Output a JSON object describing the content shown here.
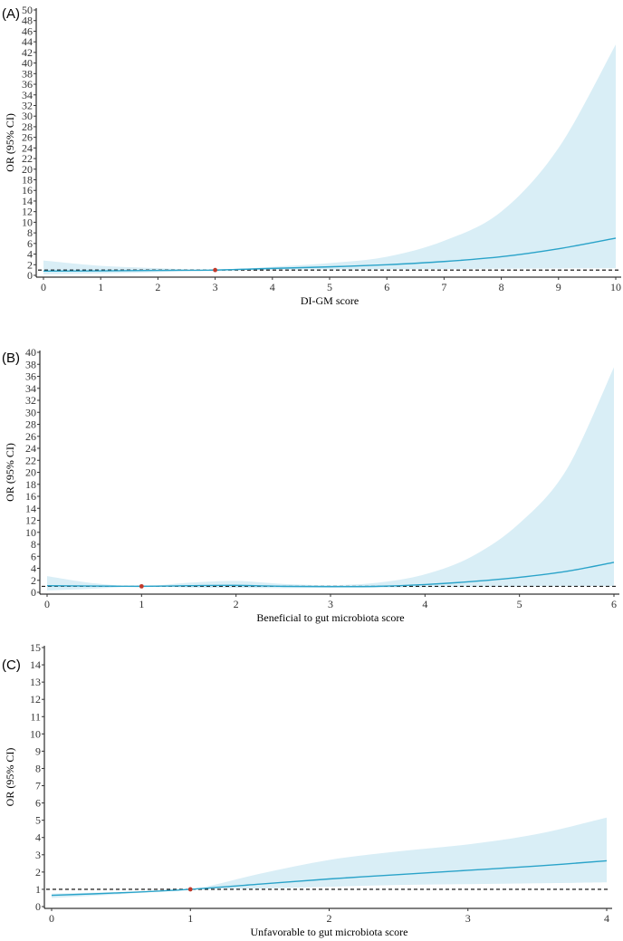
{
  "chart_data": [
    {
      "panel": "(A)",
      "type": "area",
      "title": "",
      "xlabel": "DI-GM score",
      "ylabel": "OR (95% CI)",
      "xlim": [
        0,
        10
      ],
      "ylim": [
        0,
        50
      ],
      "xticks": [
        0,
        1,
        2,
        3,
        4,
        5,
        6,
        7,
        8,
        9,
        10
      ],
      "yticks": [
        0,
        2,
        4,
        6,
        8,
        10,
        12,
        14,
        16,
        18,
        20,
        22,
        24,
        26,
        28,
        30,
        32,
        34,
        36,
        38,
        40,
        42,
        44,
        46,
        48,
        50
      ],
      "reference_line": 1,
      "reference_point": {
        "x": 3,
        "y": 1
      },
      "series": [
        {
          "name": "OR",
          "x": [
            0,
            1,
            2,
            3,
            4,
            5,
            6,
            7,
            8,
            9,
            10
          ],
          "values": [
            0.8,
            0.85,
            0.93,
            1.0,
            1.3,
            1.6,
            2.0,
            2.6,
            3.5,
            5.0,
            7.0
          ]
        },
        {
          "name": "95% CI upper",
          "x": [
            0,
            1,
            2,
            3,
            4,
            5,
            6,
            7,
            8,
            9,
            10
          ],
          "values": [
            2.8,
            1.8,
            1.35,
            1.0,
            1.6,
            2.3,
            3.5,
            6.5,
            12.0,
            24.0,
            43.5
          ]
        },
        {
          "name": "95% CI lower",
          "x": [
            0,
            1,
            2,
            3,
            4,
            5,
            6,
            7,
            8,
            9,
            10
          ],
          "values": [
            0.2,
            0.35,
            0.6,
            1.0,
            1.05,
            1.1,
            1.15,
            1.2,
            1.25,
            1.3,
            1.35
          ]
        }
      ]
    },
    {
      "panel": "(B)",
      "type": "area",
      "title": "",
      "xlabel": "Beneficial to gut microbiota score",
      "ylabel": "OR (95% CI)",
      "xlim": [
        0,
        6
      ],
      "ylim": [
        0,
        40
      ],
      "xticks": [
        0,
        1,
        2,
        3,
        4,
        5,
        6
      ],
      "yticks": [
        0,
        2,
        4,
        6,
        8,
        10,
        12,
        14,
        16,
        18,
        20,
        22,
        24,
        26,
        28,
        30,
        32,
        34,
        36,
        38,
        40
      ],
      "reference_line": 1,
      "reference_point": {
        "x": 1,
        "y": 1
      },
      "series": [
        {
          "name": "OR",
          "x": [
            0,
            0.5,
            1,
            1.5,
            2,
            2.5,
            3,
            3.5,
            4,
            4.5,
            5,
            5.5,
            6
          ],
          "values": [
            1.1,
            1.05,
            1.0,
            1.1,
            1.15,
            1.0,
            0.95,
            1.0,
            1.3,
            1.8,
            2.5,
            3.5,
            5.0
          ]
        },
        {
          "name": "95% CI upper",
          "x": [
            0,
            0.5,
            1,
            1.5,
            2,
            2.5,
            3,
            3.5,
            4,
            4.5,
            5,
            5.5,
            6
          ],
          "values": [
            2.7,
            1.5,
            1.0,
            1.6,
            1.9,
            1.4,
            1.2,
            1.6,
            3.0,
            6.0,
            11.5,
            20.5,
            37.5
          ]
        },
        {
          "name": "95% CI lower",
          "x": [
            0,
            0.5,
            1,
            1.5,
            2,
            2.5,
            3,
            3.5,
            4,
            4.5,
            5,
            5.5,
            6
          ],
          "values": [
            0.3,
            0.6,
            1.0,
            0.8,
            0.75,
            0.7,
            0.75,
            0.8,
            0.85,
            0.9,
            0.95,
            1.0,
            1.05
          ]
        }
      ]
    },
    {
      "panel": "(C)",
      "type": "area",
      "title": "",
      "xlabel": "Unfavorable to gut microbiota score",
      "ylabel": "OR (95% CI)",
      "xlim": [
        0,
        4
      ],
      "ylim": [
        0,
        15
      ],
      "xticks": [
        0,
        1,
        2,
        3,
        4
      ],
      "yticks": [
        0,
        1,
        2,
        3,
        4,
        5,
        6,
        7,
        8,
        9,
        10,
        11,
        12,
        13,
        14,
        15
      ],
      "reference_line": 1,
      "reference_point": {
        "x": 1,
        "y": 1
      },
      "series": [
        {
          "name": "OR",
          "x": [
            0,
            0.5,
            1,
            1.5,
            2,
            2.5,
            3,
            3.5,
            4
          ],
          "values": [
            0.65,
            0.8,
            1.0,
            1.3,
            1.6,
            1.85,
            2.1,
            2.35,
            2.65
          ]
        },
        {
          "name": "95% CI upper",
          "x": [
            0,
            0.5,
            1,
            1.5,
            2,
            2.5,
            3,
            3.5,
            4
          ],
          "values": [
            0.75,
            0.85,
            1.0,
            1.9,
            2.7,
            3.2,
            3.6,
            4.2,
            5.15
          ]
        },
        {
          "name": "95% CI lower",
          "x": [
            0,
            0.5,
            1,
            1.5,
            2,
            2.5,
            3,
            3.5,
            4
          ],
          "values": [
            0.5,
            0.72,
            1.0,
            1.05,
            1.15,
            1.25,
            1.3,
            1.35,
            1.4
          ]
        }
      ]
    }
  ]
}
